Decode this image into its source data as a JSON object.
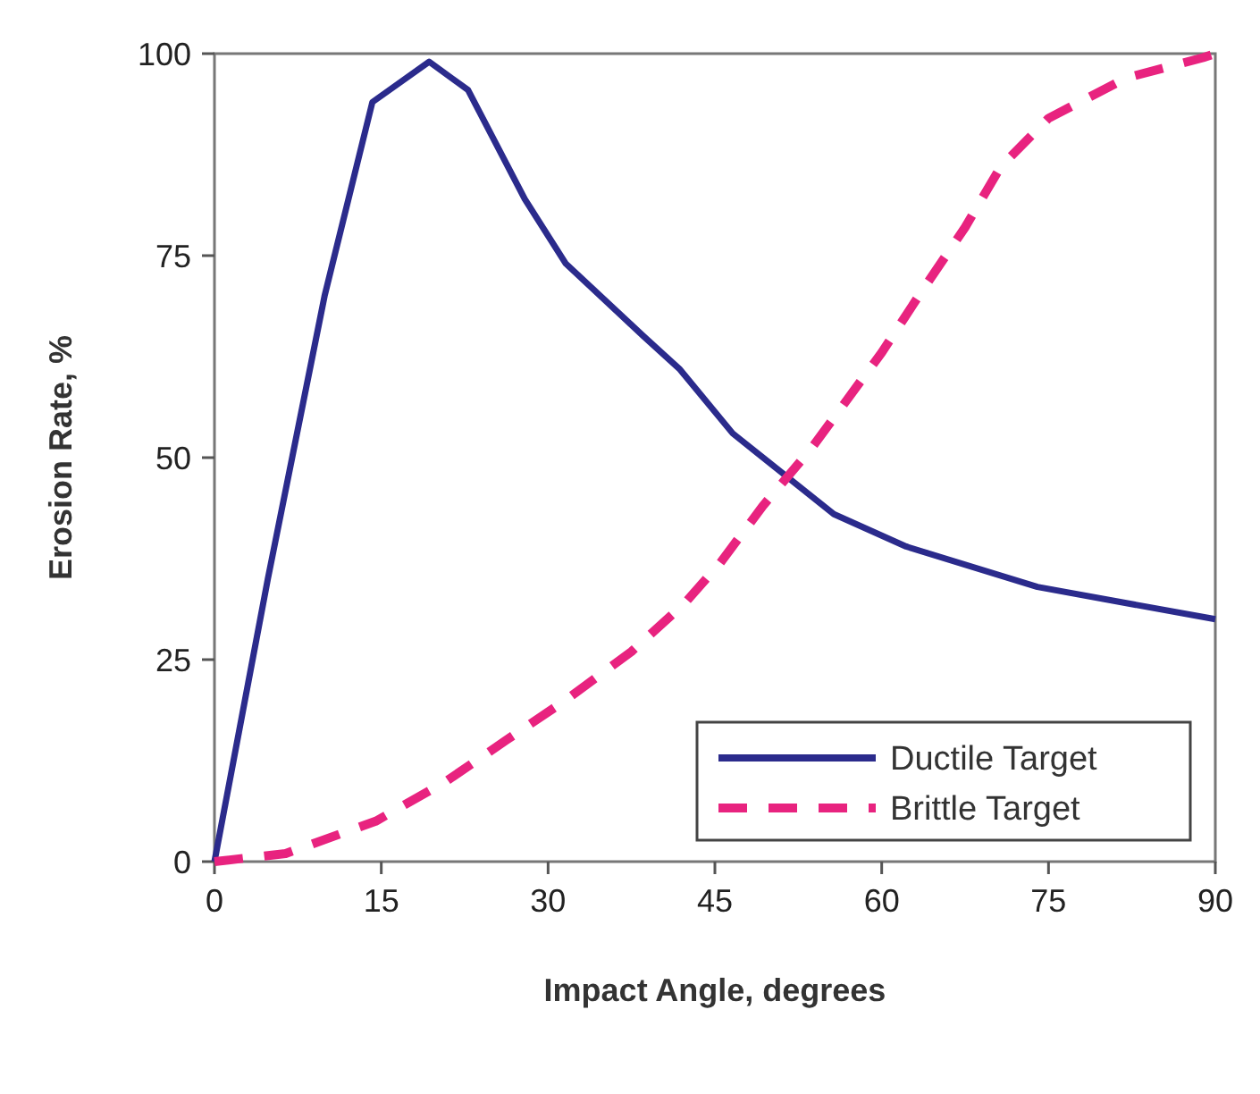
{
  "chart_data": {
    "type": "line",
    "xlabel": "Impact Angle, degrees",
    "ylabel": "Erosion Rate, %",
    "xlim": [
      0,
      90
    ],
    "ylim": [
      0,
      100
    ],
    "xticks": [
      0,
      15,
      30,
      45,
      60,
      75,
      90
    ],
    "yticks": [
      0,
      25,
      50,
      75,
      100
    ],
    "grid": false,
    "legend": "bottom right",
    "marker": "none",
    "series": [
      {
        "name": "Ductile Target",
        "color": "#2b2b8c",
        "line_style": "solid",
        "x": [
          0,
          4.8,
          9.9,
          14.2,
          19.3,
          22.8,
          27.9,
          31.6,
          38.6,
          41.8,
          46.6,
          55.7,
          62.2,
          74,
          90
        ],
        "values": [
          0,
          35,
          70,
          94,
          99,
          95.5,
          82,
          74,
          65,
          61,
          53,
          43,
          39,
          34,
          30
        ]
      },
      {
        "name": "Brittle Target",
        "color": "#e8237f",
        "line_style": "dashed",
        "x": [
          0,
          6.4,
          14.5,
          20.9,
          26.2,
          31.6,
          37.5,
          42.3,
          45.5,
          49.3,
          53.6,
          60,
          63.8,
          67.5,
          70.7,
          75,
          82,
          88.9,
          90
        ],
        "values": [
          0,
          1,
          5,
          10,
          15,
          20,
          26,
          32,
          37,
          44,
          51,
          63,
          71,
          78.5,
          86,
          92,
          97,
          99.5,
          100
        ]
      }
    ]
  }
}
